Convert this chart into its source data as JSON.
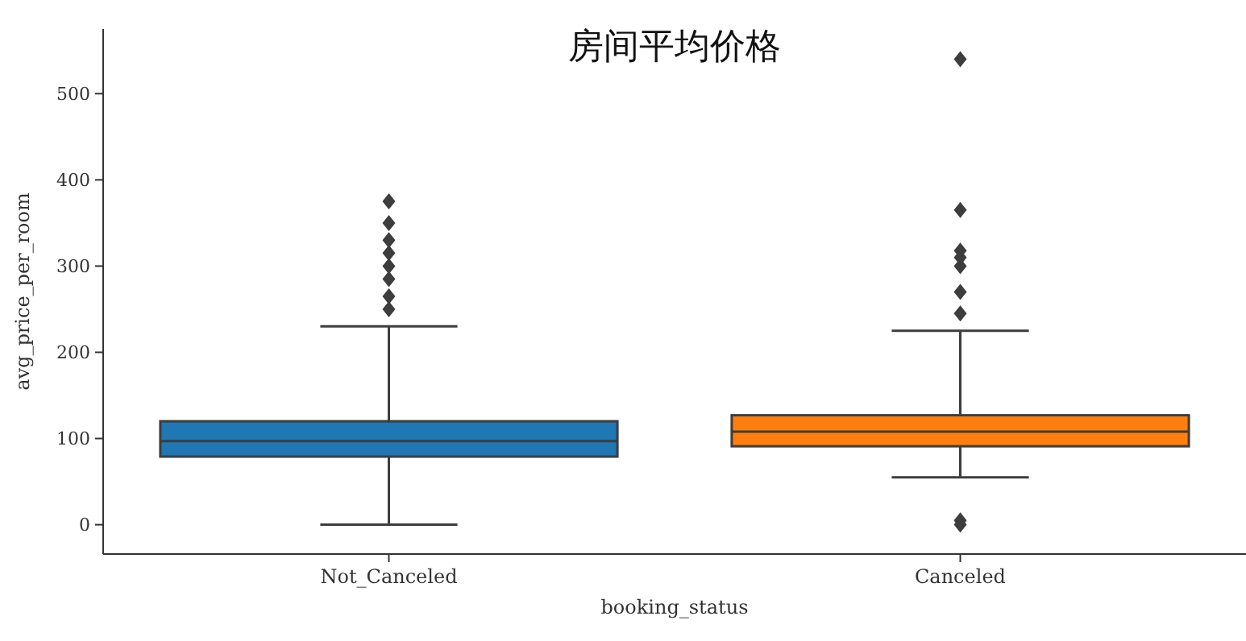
{
  "chart_data": {
    "type": "box",
    "title": "房间平均价格",
    "xlabel": "booking_status",
    "ylabel": "avg_price_per_room",
    "categories": [
      "Not_Canceled",
      "Canceled"
    ],
    "series": [
      {
        "boxes": [
          {
            "low": 0,
            "q1": 79,
            "median": 97,
            "q3": 120,
            "high": 230,
            "outliers": [
              250,
              265,
              285,
              300,
              315,
              330,
              350,
              375
            ]
          },
          {
            "low": 55,
            "q1": 91,
            "median": 108,
            "q3": 127,
            "high": 225,
            "outliers": [
              0,
              5,
              245,
              270,
              300,
              310,
              318,
              365,
              540
            ]
          }
        ],
        "colors": [
          "#1f77b4",
          "#ff7f0e"
        ]
      }
    ],
    "ylim": [
      -34,
      575
    ],
    "yticks": [
      0,
      100,
      200,
      300,
      400,
      500
    ],
    "grid": false
  }
}
